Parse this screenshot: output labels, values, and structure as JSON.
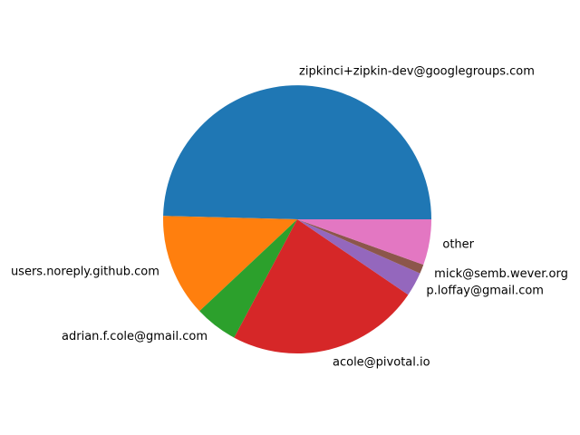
{
  "chart_data": {
    "type": "pie",
    "title": "",
    "slices": [
      {
        "label": "zipkinci+zipkin-dev@googlegroups.com",
        "value": 49.6,
        "color": "#1f77b4"
      },
      {
        "label": "users.noreply.github.com",
        "value": 12.4,
        "color": "#ff7f0e"
      },
      {
        "label": "adrian.f.cole@gmail.com",
        "value": 5.2,
        "color": "#2ca02c"
      },
      {
        "label": "acole@pivotal.io",
        "value": 23.3,
        "color": "#d62728"
      },
      {
        "label": "p.loffay@gmail.com",
        "value": 2.9,
        "color": "#9467bd"
      },
      {
        "label": "mick@semb.wever.org",
        "value": 1.1,
        "color": "#8c564b"
      },
      {
        "label": "other",
        "value": 5.5,
        "color": "#e377c2"
      }
    ],
    "start_angle_deg": 0,
    "direction": "counterclockwise",
    "legend": "none"
  }
}
